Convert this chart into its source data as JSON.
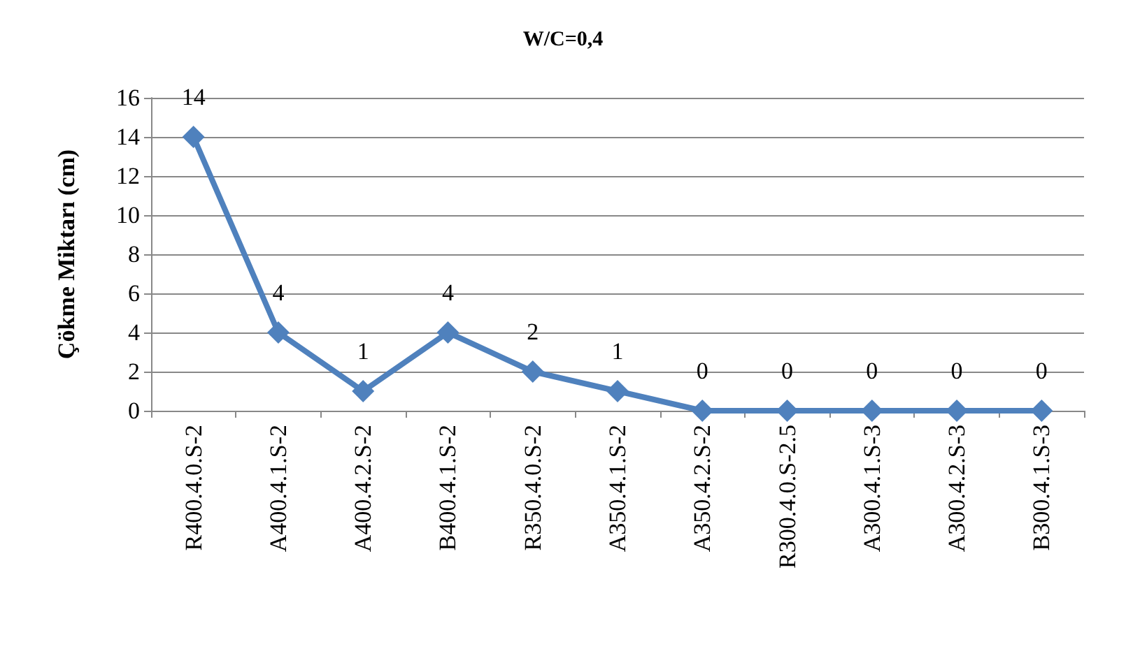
{
  "chart_data": {
    "type": "line",
    "title": "W/C=0,4",
    "ylabel": "Çökme Miktarı (cm)",
    "categories": [
      "R400.4.0.S-2",
      "A400.4.1.S-2",
      "A400.4.2.S-2",
      "B400.4.1.S-2",
      "R350.4.0.S-2",
      "A350.4.1.S-2",
      "A350.4.2.S-2",
      "R300.4.0.S-2.5",
      "A300.4.1.S-3",
      "A300.4.2.S-3",
      "B300.4.1.S-3"
    ],
    "series": [
      {
        "color": "#4f81bd",
        "values": [
          14,
          4,
          1,
          4,
          2,
          1,
          0,
          0,
          0,
          0,
          0
        ]
      }
    ],
    "ylim": [
      0,
      16
    ],
    "yticks": [
      0,
      2,
      4,
      6,
      8,
      10,
      12,
      14,
      16
    ],
    "grid": "y",
    "marker": "diamond",
    "line_style": "solid",
    "data_labels": true
  }
}
